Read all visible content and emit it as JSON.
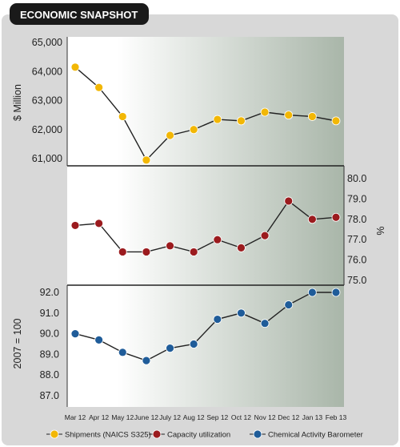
{
  "header": {
    "title": "ECONOMIC SNAPSHOT"
  },
  "colors": {
    "shipments": "#F2B705",
    "capacity": "#9B1B1E",
    "cab": "#1F5C99",
    "line": "#222222",
    "frame": "#D8D8D8"
  },
  "chart_data": {
    "type": "line",
    "categories": [
      "Mar 12",
      "Apr 12",
      "May 12",
      "June 12",
      "July 12",
      "Aug 12",
      "Sep 12",
      "Oct 12",
      "Nov 12",
      "Dec 12",
      "Jan 13",
      "Feb 13"
    ],
    "panels": [
      {
        "ylabel": "$ Million",
        "ylim": [
          61000,
          65000
        ],
        "ticks": [
          "61,000",
          "62,000",
          "63,000",
          "64,000",
          "65,000"
        ],
        "tick_values": [
          61000,
          62000,
          63000,
          64000,
          65000
        ],
        "axis_side": "left"
      },
      {
        "ylabel": "%",
        "ylim": [
          75,
          80
        ],
        "ticks": [
          "75.0",
          "76.0",
          "77.0",
          "78.0",
          "79.0",
          "80.0"
        ],
        "tick_values": [
          75,
          76,
          77,
          78,
          79,
          80
        ],
        "axis_side": "right"
      },
      {
        "ylabel": "2007 = 100",
        "ylim": [
          87,
          92
        ],
        "ticks": [
          "87.0",
          "88.0",
          "89.0",
          "90.0",
          "91.0",
          "92.0"
        ],
        "tick_values": [
          87,
          88,
          89,
          90,
          91,
          92
        ],
        "axis_side": "left"
      }
    ],
    "series": [
      {
        "name": "Shipments (NAICS S325)",
        "panel": 0,
        "color": "#F2B705",
        "values": [
          64150,
          63450,
          62450,
          60950,
          61800,
          62000,
          62350,
          62300,
          62600,
          62500,
          62450,
          62300
        ]
      },
      {
        "name": "Capacity utilization",
        "panel": 1,
        "color": "#9B1B1E",
        "values": [
          77.7,
          77.8,
          76.4,
          76.4,
          76.7,
          76.4,
          77.0,
          76.6,
          77.2,
          78.9,
          78.0,
          78.1
        ]
      },
      {
        "name": "Chemical Activity Barometer",
        "panel": 2,
        "color": "#1F5C99",
        "values": [
          90.0,
          89.7,
          89.1,
          88.7,
          89.3,
          89.5,
          90.7,
          91.0,
          90.5,
          91.4,
          92.0,
          92.0
        ]
      }
    ],
    "legend": [
      {
        "label": "Shipments (NAICS S325)",
        "color": "#F2B705"
      },
      {
        "label": "Capacity utilization",
        "color": "#9B1B1E"
      },
      {
        "label": "Chemical Activity Barometer",
        "color": "#1F5C99"
      }
    ],
    "legend_position": "bottom"
  }
}
